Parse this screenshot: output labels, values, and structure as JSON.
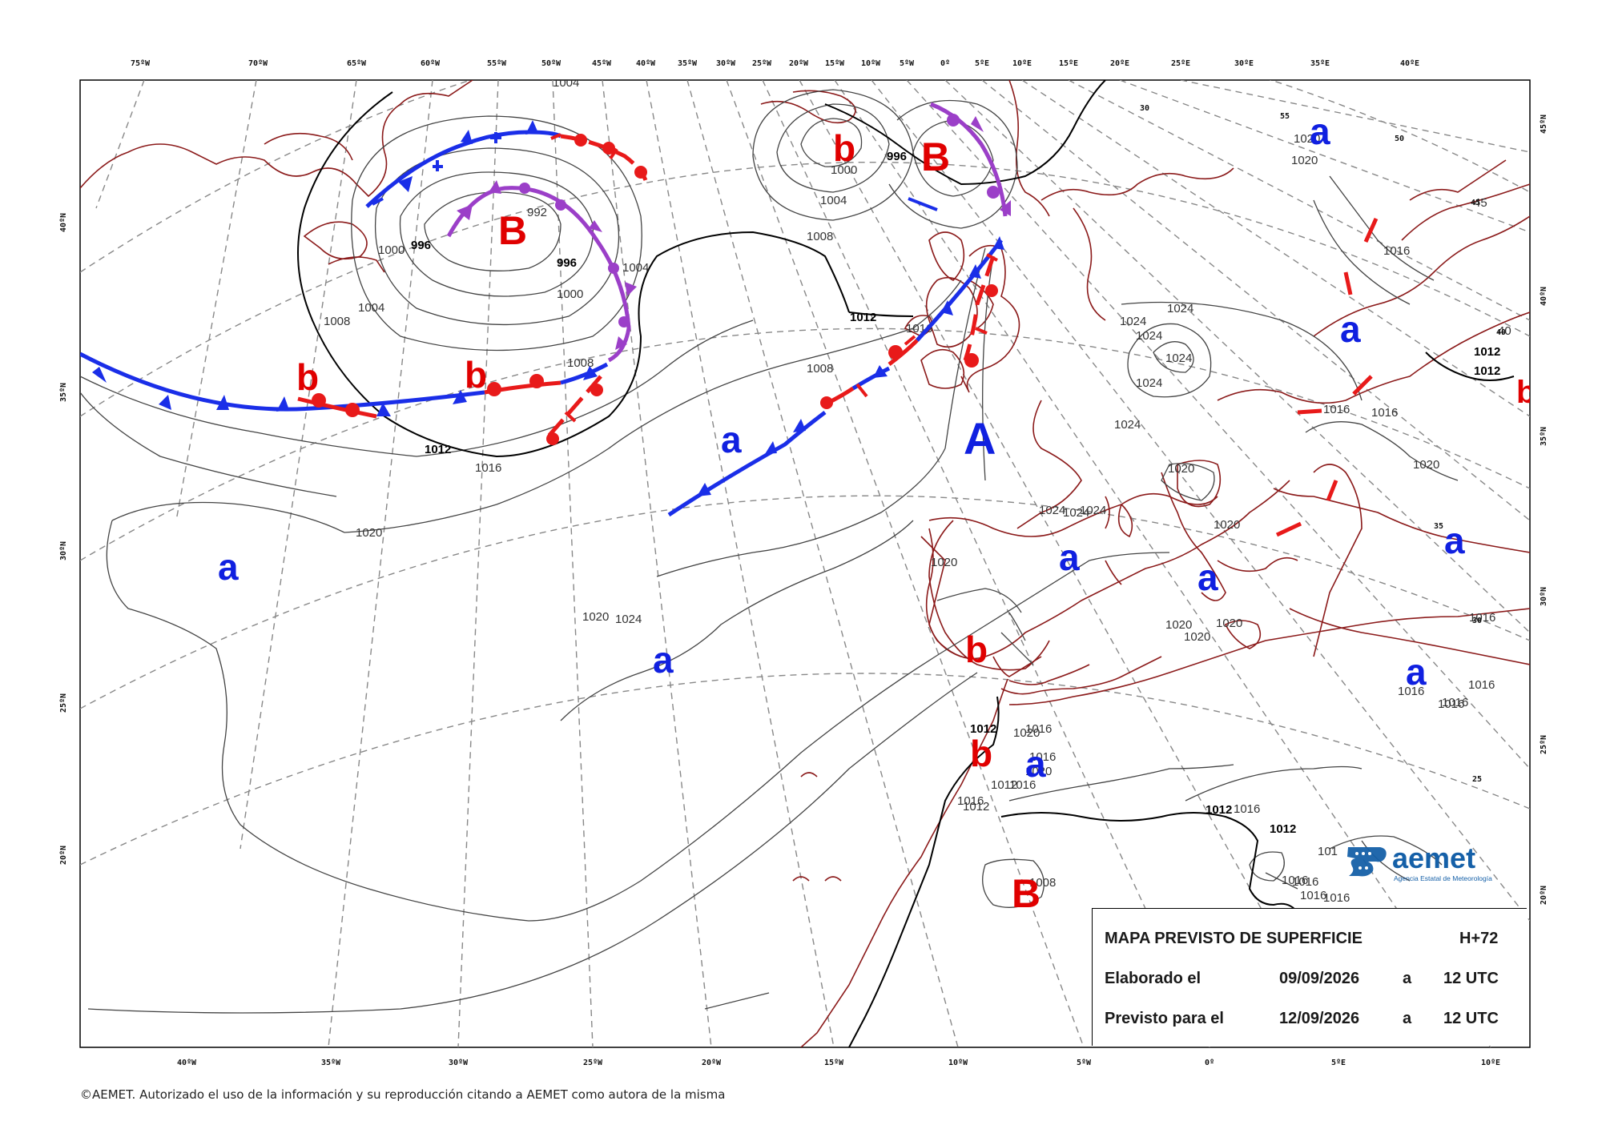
{
  "map": {
    "top_longitude_labels": [
      "75ºW",
      "70ºW",
      "65ºW",
      "60ºW",
      "55ºW",
      "50ºW",
      "45ºW",
      "40ºW",
      "35ºW",
      "30ºW",
      "25ºW",
      "20ºW",
      "15ºW",
      "10ºW",
      "5ºW",
      "0º",
      "5ºE",
      "10ºE",
      "15ºE",
      "20ºE",
      "25ºE",
      "30ºE",
      "35ºE",
      "40ºE"
    ],
    "bottom_longitude_labels": [
      "40ºW",
      "35ºW",
      "30ºW",
      "25ºW",
      "20ºW",
      "15ºW",
      "10ºW",
      "5ºW",
      "0º",
      "5ºE",
      "10ºE"
    ],
    "left_latitude_labels": [
      "40ºN",
      "35ºN",
      "30ºN",
      "25ºN",
      "20ºN"
    ],
    "right_latitude_labels": [
      "45ºN",
      "40ºN",
      "35ºN",
      "30ºN",
      "25ºN",
      "20ºN"
    ],
    "grid_values": [
      "55",
      "50",
      "45",
      "40",
      "35",
      "30",
      "25",
      "30"
    ],
    "isobar_labels": [
      "1004",
      "992",
      "996",
      "1000",
      "996",
      "1004",
      "1000",
      "1004",
      "1008",
      "1008",
      "1012",
      "1016",
      "1020",
      "1020",
      "1024",
      "1012",
      "1016",
      "1008",
      "996",
      "1000",
      "1004",
      "1008",
      "1024",
      "1024",
      "1024",
      "1024",
      "1024",
      "1024",
      "1024",
      "1020",
      "1020",
      "1020",
      "1020",
      "1020",
      "1020",
      "1024",
      "1024",
      "1012",
      "1020",
      "1016",
      "1016",
      "1020",
      "1016",
      "1016",
      "1012",
      "1012",
      "1016",
      "1016",
      "1016",
      "1016",
      "1016",
      "1016",
      "1008",
      "1012",
      "1012",
      "1016",
      "1016",
      "1016",
      "1016",
      "1016",
      "1020",
      "1012",
      "1012",
      "1012",
      "101",
      "40",
      "45",
      "1020",
      "1020",
      "1016",
      "1016"
    ],
    "pressure_centers": [
      {
        "symbol": "B",
        "kind": "low",
        "color": "#e00000"
      },
      {
        "symbol": "B",
        "kind": "low",
        "color": "#e00000"
      },
      {
        "symbol": "B",
        "kind": "low",
        "color": "#e00000"
      },
      {
        "symbol": "A",
        "kind": "high",
        "color": "#1020e0"
      },
      {
        "symbol": "b",
        "kind": "relative low",
        "color": "#e00000"
      },
      {
        "symbol": "a",
        "kind": "relative high",
        "color": "#1020e0"
      }
    ]
  },
  "info": {
    "title": "MAPA PREVISTO DE SUPERFICIE",
    "horizon": "H+72",
    "elaborated_label": "Elaborado el",
    "elaborated_date": "09/09/2026",
    "a1": "a",
    "elaborated_time": "12 UTC",
    "forecast_label": "Previsto para el",
    "forecast_date": "12/09/2026",
    "a2": "a",
    "forecast_time": "12 UTC"
  },
  "logo": {
    "name": "aemet",
    "subtitle": "Agencia Estatal de Meteorología"
  },
  "credit": "©AEMET. Autorizado el uso de la información y su reproducción citando a AEMET como autora de la misma",
  "colors": {
    "cold_front": "#1a2ee8",
    "warm_front": "#e81a1a",
    "occluded_front": "#9b3fc8",
    "coastline": "#8b1a1a",
    "isobar": "#444444",
    "grid": "#888888",
    "logo_blue": "#1560a8"
  }
}
